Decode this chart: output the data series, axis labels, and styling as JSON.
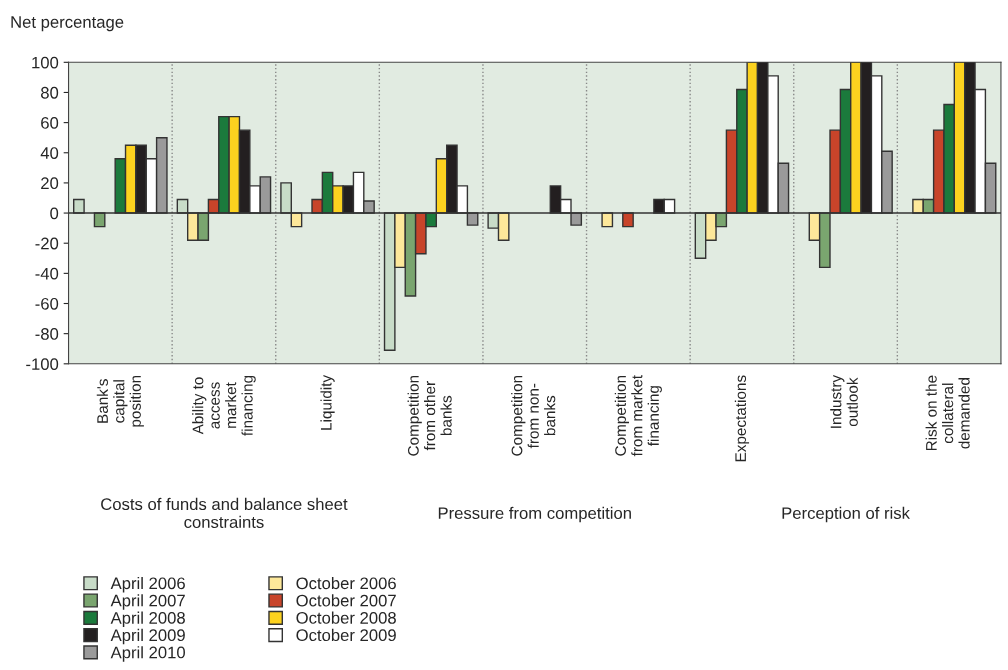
{
  "chart_data": {
    "type": "bar",
    "ylabel": "Net percentage",
    "categories": [
      "Bank's\ncapital\nposition",
      "Ability to\naccess\nmarket\nfinancing",
      "Liquidity",
      "Competition\nfrom other\nbanks",
      "Competition\nfrom non-\nbanks",
      "Competition\nfrom market\nfinancing",
      "Expectations",
      "Industry\noutlook",
      "Risk on the\ncollateral\ndemanded"
    ],
    "series": [
      {
        "name": "April 2006",
        "color": "#c8dcc8",
        "values": [
          9,
          9,
          20,
          -91,
          -10,
          null,
          -30,
          null,
          null
        ]
      },
      {
        "name": "October 2006",
        "color": "#fde89a",
        "values": [
          null,
          -18,
          -9,
          -36,
          -18,
          -9,
          -18,
          -18,
          9
        ]
      },
      {
        "name": "April 2007",
        "color": "#7aa56f",
        "values": [
          -9,
          -18,
          null,
          -55,
          null,
          null,
          -9,
          -36,
          9
        ]
      },
      {
        "name": "October 2007",
        "color": "#c8442a",
        "values": [
          null,
          9,
          9,
          -27,
          null,
          -9,
          55,
          55,
          55
        ]
      },
      {
        "name": "April 2008",
        "color": "#1b7a3c",
        "values": [
          36,
          64,
          27,
          -9,
          null,
          null,
          82,
          82,
          72
        ]
      },
      {
        "name": "October 2008",
        "color": "#fcd21f",
        "values": [
          45,
          64,
          18,
          36,
          null,
          null,
          100,
          100,
          100
        ]
      },
      {
        "name": "April 2009",
        "color": "#231f20",
        "values": [
          45,
          55,
          18,
          45,
          18,
          9,
          100,
          100,
          100
        ]
      },
      {
        "name": "October 2009",
        "color": "#ffffff",
        "values": [
          36,
          18,
          27,
          18,
          9,
          9,
          91,
          91,
          82
        ]
      },
      {
        "name": "April 2010",
        "color": "#9a9a9a",
        "values": [
          50,
          24,
          8,
          -8,
          -8,
          null,
          33,
          41,
          33
        ]
      }
    ],
    "annotations": [
      "Costs of funds and balance sheet\nconstraints",
      "Pressure from competition",
      "Perception of risk"
    ],
    "ylim": [
      -100,
      100
    ],
    "yticks": [
      -100,
      -80,
      -60,
      -40,
      -20,
      0,
      20,
      40,
      60,
      80,
      100
    ],
    "grid": false,
    "legend": "bottom left"
  }
}
